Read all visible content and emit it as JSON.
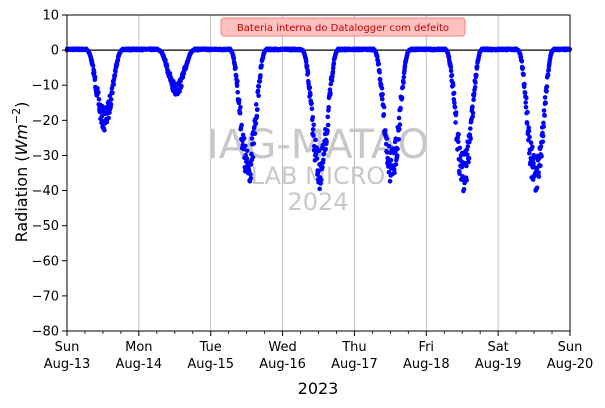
{
  "chart_data": {
    "type": "scatter",
    "ylabel_text": "Radiation (",
    "ylabel_unit_base": "Wm",
    "ylabel_unit_exp": "−2",
    "ylabel_close": ")",
    "xlabel": "2023",
    "ylim": [
      -80,
      10
    ],
    "yticks": [
      10,
      0,
      -10,
      -20,
      -30,
      -40,
      -50,
      -60,
      -70,
      -80
    ],
    "xlim": [
      "2023-08-13",
      "2023-08-20"
    ],
    "xticks": [
      {
        "day": "Sun",
        "date": "Aug-13"
      },
      {
        "day": "Mon",
        "date": "Aug-14"
      },
      {
        "day": "Tue",
        "date": "Aug-15"
      },
      {
        "day": "Wed",
        "date": "Aug-16"
      },
      {
        "day": "Thu",
        "date": "Aug-17"
      },
      {
        "day": "Fri",
        "date": "Aug-18"
      },
      {
        "day": "Sat",
        "date": "Aug-19"
      },
      {
        "day": "Sun",
        "date": "Aug-20"
      }
    ],
    "grid": "vertical",
    "reference_line": 0,
    "annotation": "Bateria interna do Datalogger com defeito",
    "watermark": [
      "IAG-MATAO",
      "LAB MICRO",
      "2024"
    ],
    "series": [
      {
        "color": "#0000ff",
        "daily_minimum": [
          {
            "date": "2023-08-13",
            "min": -23
          },
          {
            "date": "2023-08-14",
            "min": -13
          },
          {
            "date": "2023-08-15",
            "min": -39
          },
          {
            "date": "2023-08-16",
            "min": -40
          },
          {
            "date": "2023-08-17",
            "min": -39
          },
          {
            "date": "2023-08-18",
            "min": -41
          },
          {
            "date": "2023-08-19",
            "min": -42
          }
        ]
      }
    ]
  },
  "style": {
    "point_color": "#0000ff",
    "grid_color": "#b0b0b0",
    "note_bg": "#ffc0c0",
    "note_border": "#ff8080"
  }
}
